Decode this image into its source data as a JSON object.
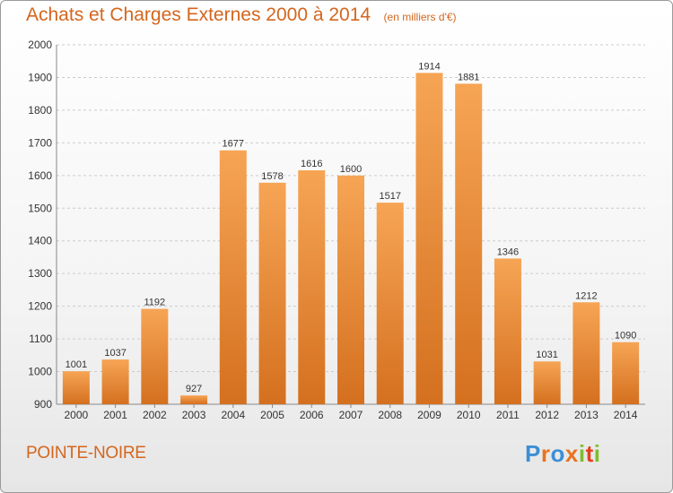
{
  "header": {
    "title": "Achats et Charges Externes 2000 à 2014",
    "subtitle": "(en milliers d'€)"
  },
  "footer": {
    "town": "POINTE-NOIRE",
    "logo_letters": [
      "P",
      "r",
      "o",
      "x",
      "i",
      "t",
      "i"
    ],
    "logo_colors": [
      "#3b8fd6",
      "#e8731f",
      "#3b8fd6",
      "#e8731f",
      "#7dbd2c",
      "#e0421f",
      "#7dbd2c"
    ]
  },
  "colors": {
    "bar_top": "#f6a555",
    "bar_bottom": "#d4701f",
    "accent": "#d4661f",
    "grid": "#cccccc"
  },
  "chart_data": {
    "type": "bar",
    "title": "Achats et Charges Externes 2000 à 2014",
    "subtitle": "(en milliers d'€)",
    "categories": [
      "2000",
      "2001",
      "2002",
      "2003",
      "2004",
      "2005",
      "2006",
      "2007",
      "2008",
      "2009",
      "2010",
      "2011",
      "2012",
      "2013",
      "2014"
    ],
    "values": [
      1001,
      1037,
      1192,
      927,
      1677,
      1578,
      1616,
      1600,
      1517,
      1914,
      1881,
      1346,
      1031,
      1212,
      1090
    ],
    "ylim": [
      900,
      2000
    ],
    "yticks": [
      900,
      1000,
      1100,
      1200,
      1300,
      1400,
      1500,
      1600,
      1700,
      1800,
      1900,
      2000
    ],
    "grid": true,
    "xlabel": "",
    "ylabel": ""
  }
}
